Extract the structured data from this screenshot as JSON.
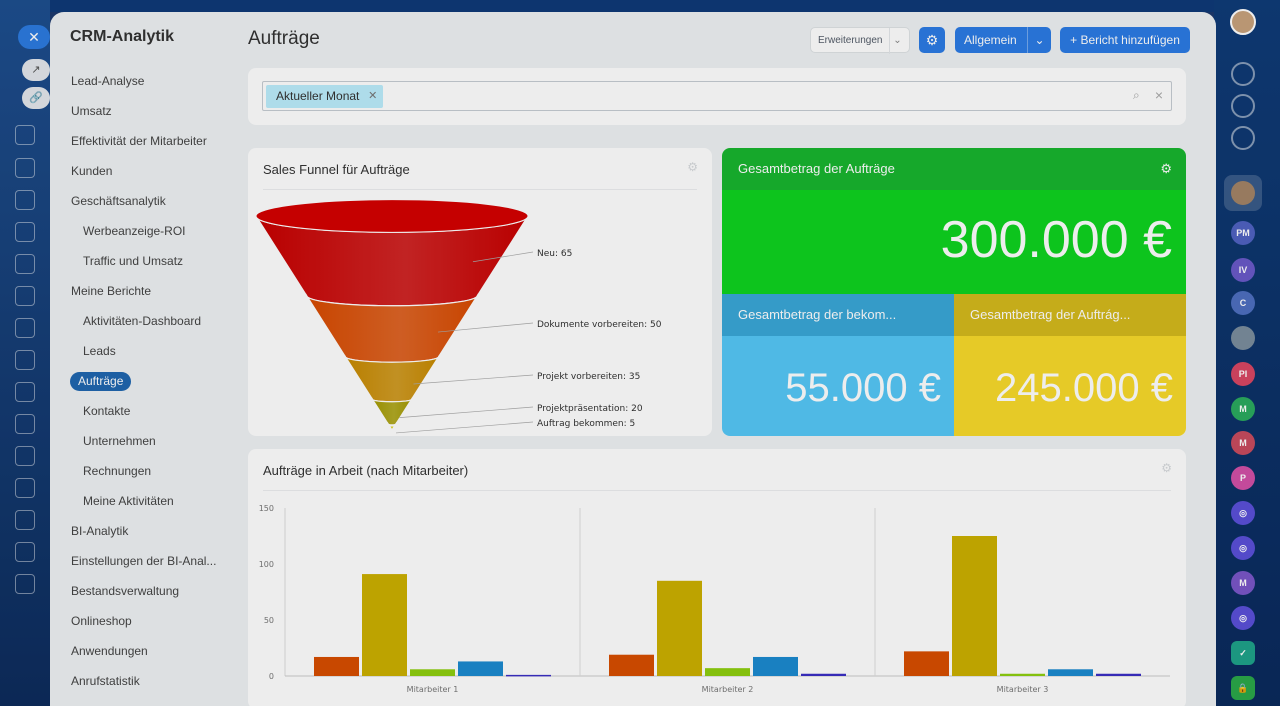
{
  "app": {
    "title": "CRM-Analytik"
  },
  "page": {
    "title": "Aufträge"
  },
  "toolbar": {
    "extensions_label": "Erweiterungen",
    "general_label": "Allgemein",
    "add_report_label": "+ Bericht hinzufügen"
  },
  "filter": {
    "chip_label": "Aktueller Monat"
  },
  "sidebar": {
    "items": [
      {
        "label": "Lead-Analyse",
        "level": 0
      },
      {
        "label": "Umsatz",
        "level": 0
      },
      {
        "label": "Effektivität der Mitarbeiter",
        "level": 0
      },
      {
        "label": "Kunden",
        "level": 0
      },
      {
        "label": "Geschäftsanalytik",
        "level": 0
      },
      {
        "label": "Werbeanzeige-ROI",
        "level": 1
      },
      {
        "label": "Traffic und Umsatz",
        "level": 1
      },
      {
        "label": "Meine Berichte",
        "level": 0
      },
      {
        "label": "Aktivitäten-Dashboard",
        "level": 1
      },
      {
        "label": "Leads",
        "level": 1
      },
      {
        "label": "Aufträge",
        "level": 1,
        "active": true
      },
      {
        "label": "Kontakte",
        "level": 1
      },
      {
        "label": "Unternehmen",
        "level": 1
      },
      {
        "label": "Rechnungen",
        "level": 1
      },
      {
        "label": "Meine Aktivitäten",
        "level": 1
      },
      {
        "label": "BI-Analytik",
        "level": 0
      },
      {
        "label": "Einstellungen der BI-Anal...",
        "level": 0
      },
      {
        "label": "Bestandsverwaltung",
        "level": 0
      },
      {
        "label": "Onlineshop",
        "level": 0
      },
      {
        "label": "Anwendungen",
        "level": 0
      },
      {
        "label": "Anrufstatistik",
        "level": 0
      }
    ]
  },
  "funnel": {
    "title": "Sales Funnel für Aufträge",
    "chart_data": {
      "type": "funnel",
      "stages": [
        {
          "label": "Neu: 65",
          "value": 65,
          "color": "#c80000"
        },
        {
          "label": "Dokumente vorbereiten: 50",
          "value": 50,
          "color": "#d84a00"
        },
        {
          "label": "Projekt vorbereiten: 35",
          "value": 35,
          "color": "#c88a00"
        },
        {
          "label": "Projektpräsentation: 20",
          "value": 20,
          "color": "#a59b00"
        },
        {
          "label": "Auftrag bekommen: 5",
          "value": 5,
          "color": "#d6cc00"
        }
      ]
    }
  },
  "totals": {
    "main_title": "Gesamtbetrag der Aufträge",
    "main_value": "300.000 €",
    "left_title": "Gesamtbetrag der bekom...",
    "left_value": "55.000 €",
    "right_title": "Gesamtbetrag der Auftrág...",
    "right_value": "245.000 €",
    "colors": {
      "main_head": "#18b52f",
      "main_body": "#0fd320",
      "left_head": "#3aa7d8",
      "left_body": "#55c8f7",
      "right_head": "#d4ba1c",
      "right_body": "#f8da2a"
    }
  },
  "bar_chart": {
    "title": "Aufträge in Arbeit (nach Mitarbeiter)",
    "chart_data": {
      "type": "bar",
      "categories": [
        "Mitarbeiter 1",
        "Mitarbeiter 2",
        "Mitarbeiter 3"
      ],
      "ylim": [
        0,
        150
      ],
      "yticks": [
        0,
        50,
        100,
        150
      ],
      "grid": "vertical",
      "series": [
        {
          "values": [
            17,
            19,
            22
          ],
          "color": "#d84e00"
        },
        {
          "values": [
            91,
            85,
            125
          ],
          "color": "#ccb000"
        },
        {
          "values": [
            6,
            7,
            2
          ],
          "color": "#8fcf10"
        },
        {
          "values": [
            13,
            17,
            6
          ],
          "color": "#1b8ad0"
        },
        {
          "values": [
            1,
            2,
            2
          ],
          "color": "#3b2fc4"
        }
      ]
    }
  }
}
